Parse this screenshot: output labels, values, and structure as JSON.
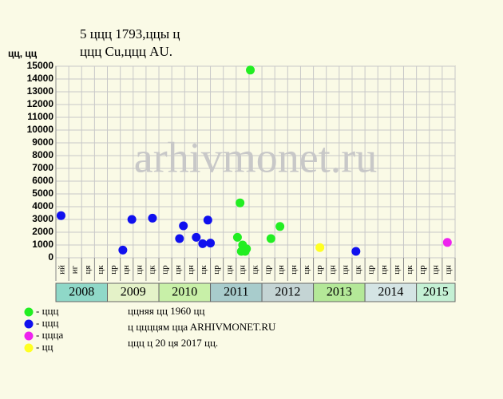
{
  "chart_data": {
    "type": "scatter",
    "title": "5 ццц 1793,ццы ц",
    "subtitle": "ццц Cu,ццц AU.",
    "y_label": "цц, цц",
    "watermark": "arhivmonet.ru",
    "xlim": [
      0,
      31
    ],
    "ylim": [
      0,
      15000
    ],
    "yticks": [
      0,
      1000,
      2000,
      3000,
      4000,
      5000,
      6000,
      7000,
      8000,
      9000,
      10000,
      11000,
      12000,
      13000,
      14000,
      15000
    ],
    "grid": true,
    "x_groups": [
      {
        "year": "2008",
        "color": "#8fd8c8",
        "months": [
          "ий",
          "иг",
          "ця",
          "цк"
        ]
      },
      {
        "year": "2009",
        "color": "#e4f2c8",
        "months": [
          "цр",
          "цн",
          "цн",
          "цк"
        ]
      },
      {
        "year": "2010",
        "color": "#c8f0a8",
        "months": [
          "цр",
          "цн",
          "цн",
          "цк"
        ]
      },
      {
        "year": "2011",
        "color": "#a8cccc",
        "months": [
          "цр",
          "цн",
          "цн",
          "цк"
        ]
      },
      {
        "year": "2012",
        "color": "#c4d4d4",
        "months": [
          "цр",
          "цн",
          "цн",
          "цк"
        ]
      },
      {
        "year": "2013",
        "color": "#b4e898",
        "months": [
          "цр",
          "цн",
          "цн",
          "цк"
        ]
      },
      {
        "year": "2014",
        "color": "#d4e4e4",
        "months": [
          "цр",
          "цн",
          "цн",
          "цк"
        ]
      },
      {
        "year": "2015",
        "color": "#c4f0d4",
        "months": [
          "цр",
          "цн",
          "цн"
        ]
      }
    ],
    "series": [
      {
        "name": "- ццц",
        "color": "#22ee22",
        "x": [
          14.3,
          14.1,
          14.5,
          14.4,
          14.7,
          14.8,
          15.1,
          16.7,
          17.4
        ],
        "values": [
          4300,
          1600,
          1000,
          500,
          500,
          700,
          14700,
          1500,
          2450
        ]
      },
      {
        "name": "- ццц",
        "color": "#1010ee",
        "x": [
          0.4,
          5.2,
          5.9,
          7.5,
          9.6,
          9.9,
          10.9,
          11.4,
          11.8,
          12.0,
          23.3
        ],
        "values": [
          3300,
          600,
          3000,
          3100,
          1500,
          2500,
          1600,
          1100,
          2950,
          1150,
          500
        ]
      },
      {
        "name": "- ццца",
        "color": "#ee22ee",
        "x": [
          30.4
        ],
        "values": [
          1200
        ]
      },
      {
        "name": "- цц",
        "color": "#ffff22",
        "x": [
          20.5
        ],
        "values": [
          800
        ]
      }
    ],
    "notes": [
      "ццняя цц 1960 цц",
      "ц ццццям ццa ARHIVMONET.RU",
      "ццц ц 20 ця 2017 цц."
    ]
  }
}
